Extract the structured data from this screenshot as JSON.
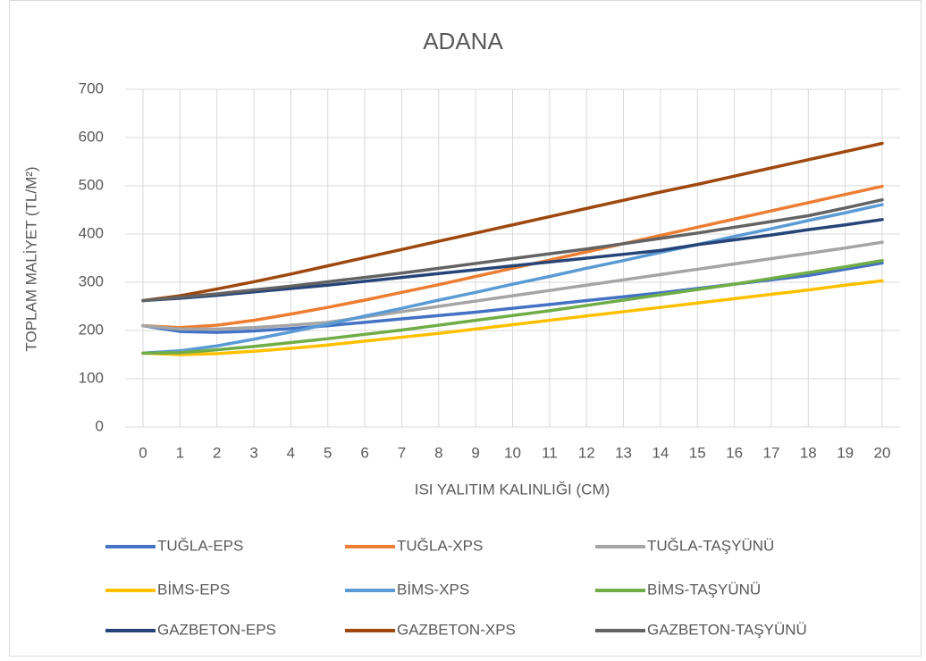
{
  "chart_data": {
    "type": "line",
    "title": "ADANA",
    "xlabel": "ISI YALITIM KALINLIĞI (CM)",
    "ylabel": "TOPLAM MALİYET (TL/M²)",
    "x": [
      0,
      1,
      2,
      3,
      4,
      5,
      6,
      7,
      8,
      9,
      10,
      11,
      12,
      13,
      14,
      15,
      16,
      17,
      18,
      19,
      20
    ],
    "xlim": [
      0,
      20
    ],
    "xticks": [
      0,
      1,
      2,
      3,
      4,
      5,
      6,
      7,
      8,
      9,
      10,
      11,
      12,
      13,
      14,
      15,
      16,
      17,
      18,
      19,
      20
    ],
    "ylim": [
      0,
      700
    ],
    "yticks": [
      0,
      100,
      200,
      300,
      400,
      500,
      600,
      700
    ],
    "grid": true,
    "legend": "bottom",
    "series": [
      {
        "name": "TUĞLA-EPS",
        "color": "#4472c4",
        "values": [
          210,
          198,
          196,
          199,
          204,
          210,
          217,
          224,
          231,
          238,
          246,
          254,
          262,
          270,
          278,
          287,
          296,
          305,
          314,
          327,
          340
        ]
      },
      {
        "name": "TUĞLA-XPS",
        "color": "#ed7d31",
        "values": [
          210,
          206,
          211,
          221,
          234,
          248,
          263,
          279,
          295,
          312,
          329,
          346,
          363,
          380,
          397,
          414,
          431,
          448,
          465,
          482,
          499
        ]
      },
      {
        "name": "TUĞLA-TAŞYÜNÜ",
        "color": "#a5a5a5",
        "values": [
          210,
          203,
          203,
          206,
          211,
          217,
          228,
          239,
          250,
          261,
          272,
          283,
          294,
          305,
          316,
          327,
          338,
          349,
          360,
          371,
          383
        ]
      },
      {
        "name": "BİMS-EPS",
        "color": "#ffc000",
        "values": [
          153,
          150,
          152,
          157,
          163,
          170,
          178,
          186,
          194,
          203,
          212,
          221,
          230,
          239,
          248,
          257,
          266,
          275,
          284,
          294,
          303
        ]
      },
      {
        "name": "BİMS-XPS",
        "color": "#5b9bd5",
        "values": [
          153,
          158,
          168,
          182,
          197,
          213,
          230,
          246,
          263,
          279,
          296,
          312,
          329,
          345,
          362,
          378,
          395,
          411,
          428,
          444,
          461
        ]
      },
      {
        "name": "BİMS-TAŞYÜNÜ",
        "color": "#70ad47",
        "values": [
          153,
          154,
          160,
          167,
          175,
          183,
          192,
          201,
          211,
          221,
          231,
          241,
          252,
          263,
          274,
          285,
          296,
          308,
          320,
          332,
          345
        ]
      },
      {
        "name": "GAZBETON-EPS",
        "color": "#264478",
        "values": [
          262,
          267,
          273,
          280,
          287,
          294,
          302,
          310,
          318,
          326,
          334,
          342,
          350,
          358,
          366,
          378,
          388,
          398,
          409,
          419,
          430
        ]
      },
      {
        "name": "GAZBETON-XPS",
        "color": "#9e480e",
        "values": [
          262,
          272,
          286,
          301,
          317,
          334,
          351,
          368,
          385,
          402,
          419,
          436,
          453,
          470,
          487,
          503,
          520,
          537,
          554,
          571,
          588
        ]
      },
      {
        "name": "GAZBETON-TAŞYÜNÜ",
        "color": "#636363",
        "values": [
          262,
          269,
          276,
          284,
          292,
          301,
          310,
          319,
          329,
          339,
          349,
          359,
          369,
          380,
          391,
          402,
          414,
          426,
          438,
          454,
          471
        ]
      }
    ]
  }
}
